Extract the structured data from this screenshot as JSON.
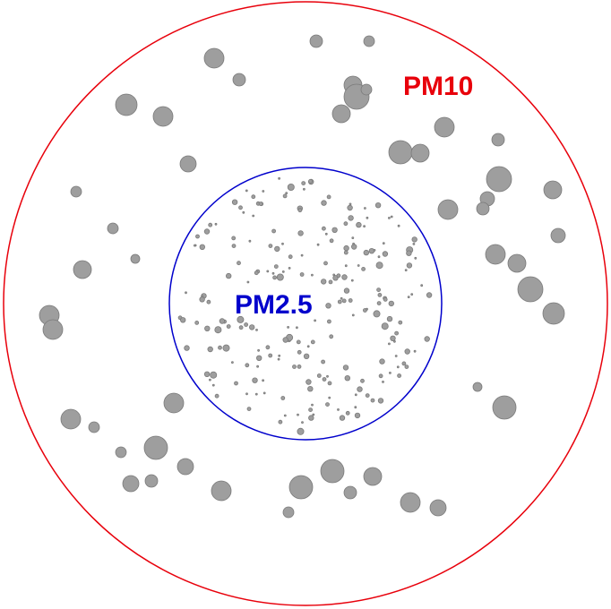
{
  "labels": {
    "outer": "PM10",
    "inner": "PM2.5"
  },
  "colors": {
    "outer_ring": "#e8000b",
    "inner_ring": "#0000cc",
    "particle_fill": "#9e9e9e",
    "particle_stroke": "#7a7a7a"
  }
}
